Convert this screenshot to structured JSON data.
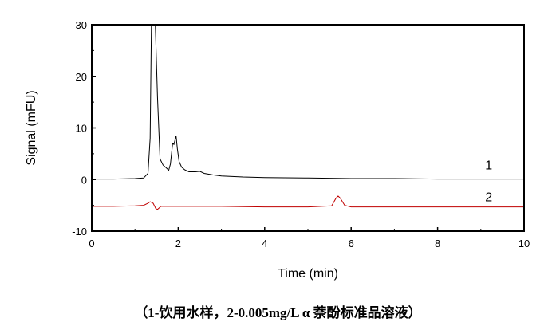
{
  "caption": "（1-饮用水样，2-0.005mg/L  α 萘酚标准品溶液）",
  "chart_data": {
    "type": "line",
    "xlabel": "Time (min)",
    "ylabel": "Signal (mFU)",
    "xlim": [
      0,
      10
    ],
    "ylim": [
      -10,
      30
    ],
    "xticks": [
      0,
      2,
      4,
      6,
      8,
      10
    ],
    "yticks": [
      -10,
      0,
      10,
      20,
      30
    ],
    "grid": false,
    "series": [
      {
        "name": "1",
        "color": "#000000",
        "x": [
          0,
          0.5,
          1.0,
          1.2,
          1.3,
          1.35,
          1.38,
          1.42,
          1.47,
          1.52,
          1.58,
          1.65,
          1.72,
          1.78,
          1.82,
          1.87,
          1.9,
          1.95,
          1.98,
          2.02,
          2.08,
          2.15,
          2.25,
          2.4,
          2.5,
          2.6,
          2.8,
          3.0,
          3.5,
          4.0,
          5,
          6,
          7,
          8,
          9,
          10
        ],
        "y": [
          0.1,
          0.1,
          0.2,
          0.3,
          1.2,
          8,
          30,
          30,
          30,
          16,
          4,
          2.8,
          2.3,
          1.8,
          3,
          7,
          6.8,
          8.5,
          6,
          3.5,
          2.4,
          1.9,
          1.5,
          1.5,
          1.6,
          1.2,
          0.9,
          0.7,
          0.5,
          0.4,
          0.3,
          0.2,
          0.2,
          0.1,
          0.1,
          0.1
        ]
      },
      {
        "name": "2",
        "color": "#c00000",
        "x": [
          0,
          0.5,
          1.0,
          1.2,
          1.3,
          1.35,
          1.42,
          1.48,
          1.52,
          1.6,
          2,
          3,
          4,
          5,
          5.55,
          5.65,
          5.7,
          5.75,
          5.85,
          6,
          7,
          8,
          9,
          10
        ],
        "y": [
          -5.2,
          -5.2,
          -5.1,
          -5.0,
          -4.6,
          -4.3,
          -4.6,
          -5.6,
          -5.8,
          -5.2,
          -5.2,
          -5.2,
          -5.3,
          -5.3,
          -5.1,
          -3.6,
          -3.2,
          -3.6,
          -5.0,
          -5.3,
          -5.3,
          -5.3,
          -5.3,
          -5.3
        ]
      }
    ],
    "series_labels": [
      {
        "text": "1",
        "x": 9.1,
        "y": 2
      },
      {
        "text": "2",
        "x": 9.1,
        "y": -4.2
      }
    ]
  }
}
